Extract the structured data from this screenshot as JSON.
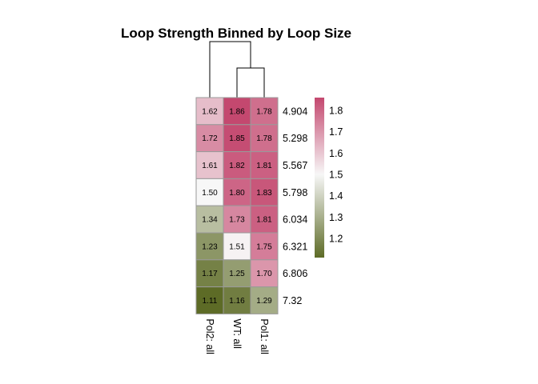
{
  "chart_data": {
    "type": "heatmap",
    "title": "Loop Strength Binned by Loop Size",
    "columns": [
      "Pol2: all",
      "WT: all",
      "Pol1: all"
    ],
    "rows": [
      "4.904",
      "5.298",
      "5.567",
      "5.798",
      "6.034",
      "6.321",
      "6.806",
      "7.32"
    ],
    "values": [
      [
        1.62,
        1.86,
        1.78
      ],
      [
        1.72,
        1.85,
        1.78
      ],
      [
        1.61,
        1.82,
        1.81
      ],
      [
        1.5,
        1.8,
        1.83
      ],
      [
        1.34,
        1.73,
        1.81
      ],
      [
        1.23,
        1.51,
        1.75
      ],
      [
        1.17,
        1.25,
        1.7
      ],
      [
        1.11,
        1.16,
        1.29
      ]
    ],
    "value_labels": [
      [
        "1.62",
        "1.86",
        "1.78"
      ],
      [
        "1.72",
        "1.85",
        "1.78"
      ],
      [
        "1.61",
        "1.82",
        "1.81"
      ],
      [
        "1.50",
        "1.80",
        "1.83"
      ],
      [
        "1.34",
        "1.73",
        "1.81"
      ],
      [
        "1.23",
        "1.51",
        "1.75"
      ],
      [
        "1.17",
        "1.25",
        "1.70"
      ],
      [
        "1.11",
        "1.16",
        "1.29"
      ]
    ],
    "color_scale": {
      "min": 1.11,
      "mid": 1.5,
      "max": 1.86,
      "low_color": "#5d6b26",
      "mid_color": "#f7f7f7",
      "high_color": "#c4486f"
    },
    "colorbar_ticks": [
      "1.2",
      "1.3",
      "1.4",
      "1.5",
      "1.6",
      "1.7",
      "1.8"
    ],
    "column_dendrogram": "Pol2 joins the cluster of WT and Pol1",
    "legend_position": "right"
  }
}
